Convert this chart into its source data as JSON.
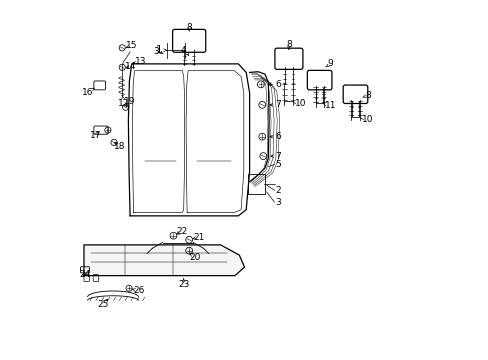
{
  "bg_color": "#ffffff",
  "line_color": "#000000",
  "fs": 6.5,
  "seat_back": {
    "outline_x": [
      1.55,
      1.52,
      1.5,
      1.52,
      1.55,
      4.85,
      5.1,
      5.25,
      5.3,
      5.25,
      5.1,
      4.85,
      1.55
    ],
    "outline_y": [
      4.2,
      5.5,
      7.0,
      8.2,
      8.75,
      8.75,
      8.6,
      8.3,
      7.0,
      5.5,
      4.4,
      4.2,
      4.2
    ]
  },
  "seat_cushion": {
    "x": [
      0.3,
      4.8,
      5.2,
      5.1,
      4.6,
      4.5,
      0.3,
      0.3
    ],
    "y": [
      2.6,
      2.6,
      2.8,
      3.1,
      3.4,
      3.5,
      3.5,
      2.6
    ]
  }
}
